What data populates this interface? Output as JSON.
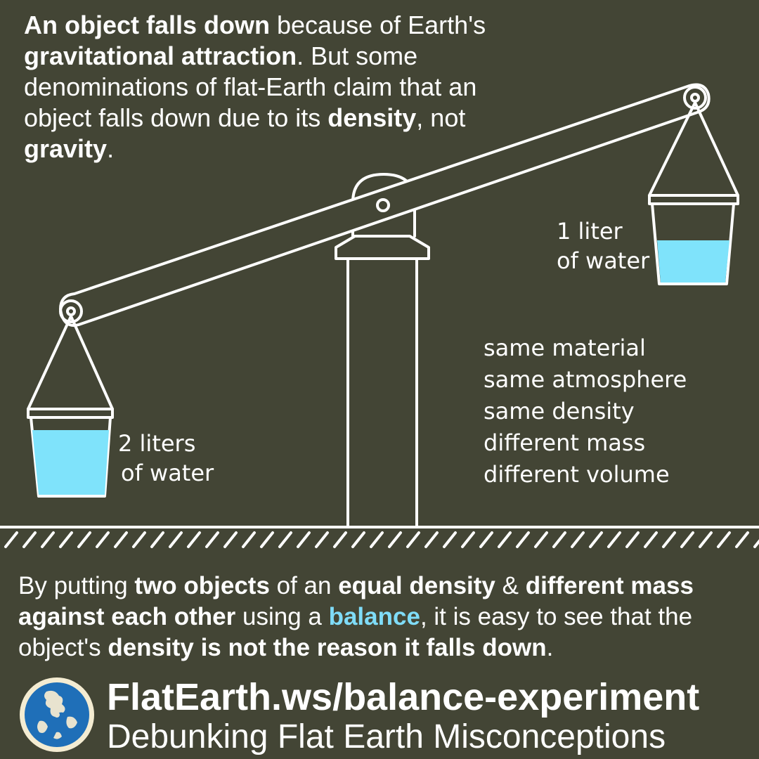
{
  "intro": {
    "p1_bold": "An object falls down",
    "p2": " because of Earth's ",
    "p3_bold": "gravitational attraction",
    "p4": ". But some denominations of flat-Earth claim that an object falls down due to its ",
    "p5_bold": "density",
    "p6": ", not ",
    "p7_bold": "gravity",
    "p8": "."
  },
  "diagram": {
    "left_label_line1": "2 liters",
    "left_label_line2": "of water",
    "right_label_line1": "1 liter",
    "right_label_line2": "of water",
    "properties": [
      "same material",
      "same atmosphere",
      "same density",
      "different mass",
      "different volume"
    ],
    "colors": {
      "water": "#7fe3fb",
      "line": "#ffffff"
    }
  },
  "summary": {
    "s1": "By putting ",
    "s2_bold": "two objects",
    "s3": " of an ",
    "s4_bold": "equal density",
    "s5": " & ",
    "s6_bold": "different mass against each other",
    "s7": " using a ",
    "s8_accent": "balance",
    "s9": ", it is easy to see that the object's ",
    "s10_bold": "density is not the reason it falls down",
    "s11": "."
  },
  "footer": {
    "url": "FlatEarth.ws/balance-experiment",
    "tagline": "Debunking Flat Earth Misconceptions",
    "logo_icon": "globe-icon"
  },
  "colors": {
    "background": "#434535",
    "accent": "#7fdcf8",
    "text": "#ffffff"
  }
}
